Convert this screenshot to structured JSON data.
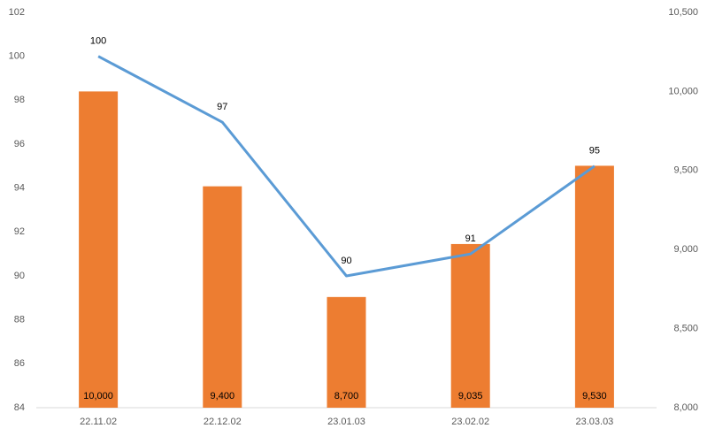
{
  "chart_data": {
    "type": "combo",
    "categories": [
      "22.11.02",
      "22.12.02",
      "23.01.03",
      "23.02.02",
      "23.03.03"
    ],
    "series": [
      {
        "type": "bar",
        "axis": "y2",
        "color": "#ed7d31",
        "values": [
          10000,
          9400,
          8700,
          9035,
          9530
        ],
        "value_labels": [
          "10,000",
          "9,400",
          "8,700",
          "9,035",
          "9,530"
        ]
      },
      {
        "type": "line",
        "color": "#5b9bd5",
        "values": [
          100,
          97,
          90,
          91,
          95
        ]
      }
    ],
    "ylim": [
      84,
      102
    ],
    "yticks": [
      84,
      86,
      88,
      90,
      92,
      94,
      96,
      98,
      100,
      102
    ],
    "y2lim": [
      8000,
      10500
    ],
    "y2ticks": [
      {
        "value": 8000,
        "label": "8,000"
      },
      {
        "value": 8500,
        "label": "8,500"
      },
      {
        "value": 9000,
        "label": "9,000"
      },
      {
        "value": 9500,
        "label": "9,500"
      },
      {
        "value": 10000,
        "label": "10,000"
      },
      {
        "value": 10500,
        "label": "10,500"
      }
    ],
    "grid": false
  }
}
